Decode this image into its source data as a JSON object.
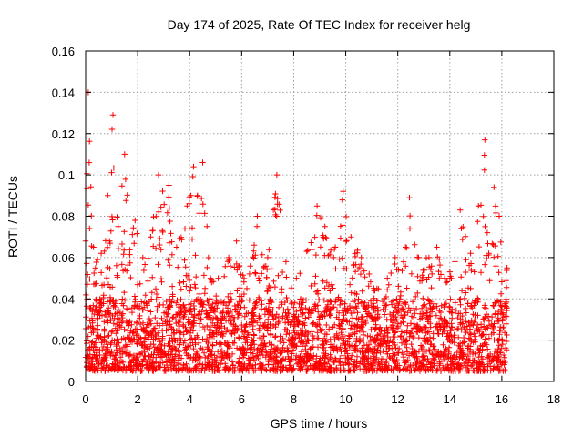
{
  "chart_data": {
    "type": "scatter",
    "title": "Day 174 of 2025, Rate Of TEC Index for receiver helg",
    "xlabel": "GPS time / hours",
    "ylabel": "ROTI / TECUs",
    "xlim": [
      0,
      18
    ],
    "ylim": [
      0,
      0.16
    ],
    "xticks": [
      "0",
      "2",
      "4",
      "6",
      "8",
      "10",
      "12",
      "14",
      "16",
      "18"
    ],
    "yticks": [
      "0",
      "0.02",
      "0.04",
      "0.06",
      "0.08",
      "0.1",
      "0.12",
      "0.14",
      "0.16"
    ],
    "grid": true,
    "marker": "+",
    "color": "#ff0000",
    "data_x_range": [
      0,
      16.2
    ],
    "envelope": [
      [
        0.0,
        0.068
      ],
      [
        0.1,
        0.14
      ],
      [
        0.3,
        0.065
      ],
      [
        0.6,
        0.062
      ],
      [
        0.85,
        0.09
      ],
      [
        1.05,
        0.129
      ],
      [
        1.25,
        0.075
      ],
      [
        1.5,
        0.11
      ],
      [
        1.9,
        0.078
      ],
      [
        2.2,
        0.06
      ],
      [
        2.5,
        0.07
      ],
      [
        2.8,
        0.1
      ],
      [
        3.2,
        0.095
      ],
      [
        3.5,
        0.065
      ],
      [
        3.9,
        0.085
      ],
      [
        4.15,
        0.104
      ],
      [
        4.3,
        0.09
      ],
      [
        4.5,
        0.106
      ],
      [
        4.8,
        0.05
      ],
      [
        5.1,
        0.05
      ],
      [
        5.5,
        0.06
      ],
      [
        5.8,
        0.068
      ],
      [
        6.2,
        0.045
      ],
      [
        6.6,
        0.08
      ],
      [
        7.0,
        0.06
      ],
      [
        7.35,
        0.1
      ],
      [
        7.7,
        0.058
      ],
      [
        8.1,
        0.05
      ],
      [
        8.5,
        0.063
      ],
      [
        8.9,
        0.085
      ],
      [
        9.2,
        0.075
      ],
      [
        9.6,
        0.065
      ],
      [
        9.9,
        0.092
      ],
      [
        10.2,
        0.07
      ],
      [
        10.6,
        0.06
      ],
      [
        10.9,
        0.052
      ],
      [
        11.2,
        0.045
      ],
      [
        11.6,
        0.05
      ],
      [
        11.9,
        0.06
      ],
      [
        12.3,
        0.065
      ],
      [
        12.45,
        0.089
      ],
      [
        12.8,
        0.06
      ],
      [
        13.2,
        0.06
      ],
      [
        13.5,
        0.065
      ],
      [
        13.8,
        0.05
      ],
      [
        14.2,
        0.058
      ],
      [
        14.4,
        0.083
      ],
      [
        14.8,
        0.062
      ],
      [
        15.1,
        0.085
      ],
      [
        15.35,
        0.117
      ],
      [
        15.5,
        0.062
      ],
      [
        15.7,
        0.094
      ],
      [
        15.9,
        0.08
      ],
      [
        16.2,
        0.055
      ]
    ],
    "baseline_min": 0.005
  }
}
